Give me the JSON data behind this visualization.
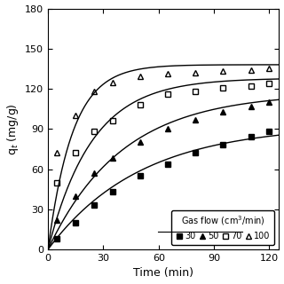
{
  "title": "",
  "xlabel": "Time (min)",
  "ylabel": "q$_t$ (mg/g)",
  "xlim": [
    0,
    125
  ],
  "ylim": [
    0,
    180
  ],
  "xticks": [
    0,
    30,
    60,
    90,
    120
  ],
  "yticks": [
    0,
    30,
    60,
    90,
    120,
    150,
    180
  ],
  "series": [
    {
      "label": "30",
      "marker": "s",
      "fillstyle": "full",
      "color": "black",
      "data_x": [
        5,
        15,
        25,
        35,
        50,
        65,
        80,
        95,
        110,
        120
      ],
      "data_y": [
        8,
        20,
        33,
        43,
        55,
        64,
        72,
        78,
        84,
        88
      ],
      "qe": 93,
      "k": 0.02
    },
    {
      "label": "50",
      "marker": "^",
      "fillstyle": "full",
      "color": "black",
      "data_x": [
        5,
        15,
        25,
        35,
        50,
        65,
        80,
        95,
        110,
        120
      ],
      "data_y": [
        22,
        40,
        57,
        68,
        80,
        90,
        97,
        103,
        107,
        110
      ],
      "qe": 117,
      "k": 0.025
    },
    {
      "label": "70",
      "marker": "s",
      "fillstyle": "none",
      "color": "black",
      "data_x": [
        5,
        15,
        25,
        35,
        50,
        65,
        80,
        95,
        110,
        120
      ],
      "data_y": [
        50,
        72,
        88,
        96,
        108,
        116,
        118,
        121,
        122,
        124
      ],
      "qe": 128,
      "k": 0.042
    },
    {
      "label": "100",
      "marker": "^",
      "fillstyle": "none",
      "color": "black",
      "data_x": [
        5,
        15,
        25,
        35,
        50,
        65,
        80,
        95,
        110,
        120
      ],
      "data_y": [
        72,
        100,
        118,
        125,
        129,
        131,
        132,
        133,
        134,
        135
      ],
      "qe": 138,
      "k": 0.075
    }
  ],
  "legend_title": "Gas flow (cm$^3$/min)",
  "background_color": "white"
}
